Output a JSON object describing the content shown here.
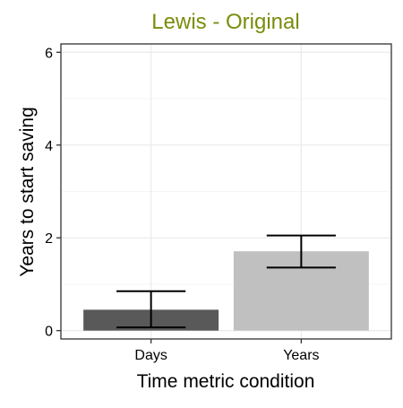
{
  "chart_data": {
    "type": "bar",
    "title": "Lewis - Original",
    "xlabel": "Time metric condition",
    "ylabel": "Years to start saving",
    "categories": [
      "Days",
      "Years"
    ],
    "values": [
      0.45,
      1.71
    ],
    "error_low": [
      0.07,
      1.36
    ],
    "error_high": [
      0.85,
      2.05
    ],
    "ylim": [
      -0.18,
      6.18
    ],
    "yticks": [
      0,
      2,
      4,
      6
    ],
    "grid": true,
    "colors": {
      "title": "#7A8C0A",
      "bars": [
        "#595959",
        "#C0C0C0"
      ],
      "grid_major": "#EBEBEB",
      "grid_minor": "#F5F5F5",
      "panel_border": "#333333",
      "error_bar": "#000000"
    }
  }
}
